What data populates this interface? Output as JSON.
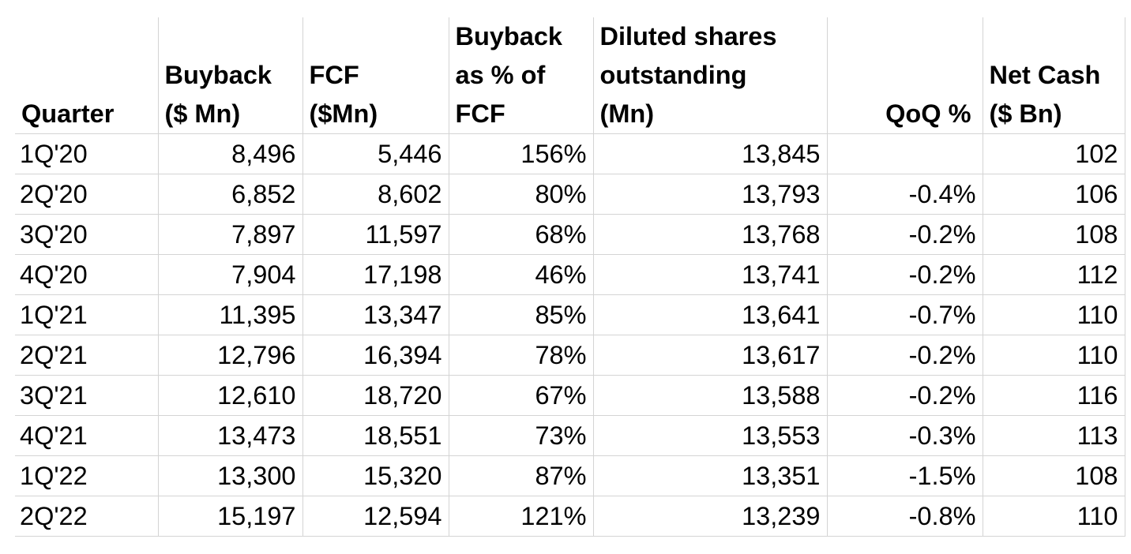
{
  "table": {
    "headers": [
      [
        "Quarter"
      ],
      [
        "Buyback",
        "($ Mn)"
      ],
      [
        "FCF",
        "($Mn)"
      ],
      [
        "Buyback",
        "as % of",
        "FCF"
      ],
      [
        "Diluted shares",
        "outstanding",
        "(Mn)"
      ],
      [
        "QoQ %"
      ],
      [
        "Net Cash",
        "($ Bn)"
      ]
    ],
    "rows": [
      [
        "1Q'20",
        "8,496",
        "5,446",
        "156%",
        "13,845",
        "",
        "102"
      ],
      [
        "2Q'20",
        "6,852",
        "8,602",
        "80%",
        "13,793",
        "-0.4%",
        "106"
      ],
      [
        "3Q'20",
        "7,897",
        "11,597",
        "68%",
        "13,768",
        "-0.2%",
        "108"
      ],
      [
        "4Q'20",
        "7,904",
        "17,198",
        "46%",
        "13,741",
        "-0.2%",
        "112"
      ],
      [
        "1Q'21",
        "11,395",
        "13,347",
        "85%",
        "13,641",
        "-0.7%",
        "110"
      ],
      [
        "2Q'21",
        "12,796",
        "16,394",
        "78%",
        "13,617",
        "-0.2%",
        "110"
      ],
      [
        "3Q'21",
        "12,610",
        "18,720",
        "67%",
        "13,588",
        "-0.2%",
        "116"
      ],
      [
        "4Q'21",
        "13,473",
        "18,551",
        "73%",
        "13,553",
        "-0.3%",
        "113"
      ],
      [
        "1Q'22",
        "13,300",
        "15,320",
        "87%",
        "13,351",
        "-1.5%",
        "108"
      ],
      [
        "2Q'22",
        "15,197",
        "12,594",
        "121%",
        "13,239",
        "-0.8%",
        "110"
      ]
    ]
  },
  "colors": {
    "text": "#000000",
    "gridline": "#d4d4d4",
    "background": "#ffffff"
  }
}
